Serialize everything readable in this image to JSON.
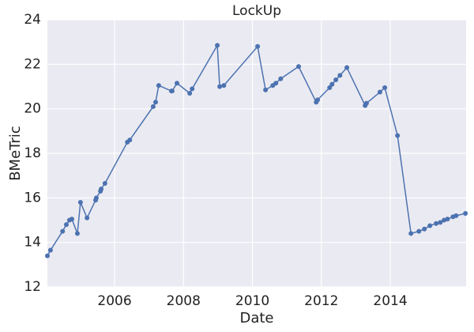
{
  "chart_data": {
    "type": "line",
    "title": "LockUp",
    "x_label": "Date",
    "y_label": "BMeTric",
    "x": [
      2004.05,
      2004.14,
      2004.49,
      2004.6,
      2004.69,
      2004.76,
      2004.92,
      2005.01,
      2005.2,
      2005.45,
      2005.47,
      2005.59,
      2005.61,
      2005.72,
      2006.37,
      2006.44,
      2007.12,
      2007.19,
      2007.28,
      2007.65,
      2007.67,
      2007.81,
      2008.18,
      2008.25,
      2008.98,
      2009.05,
      2009.17,
      2010.15,
      2010.38,
      2010.59,
      2010.68,
      2010.82,
      2011.34,
      2011.85,
      2011.89,
      2012.24,
      2012.31,
      2012.42,
      2012.54,
      2012.74,
      2013.27,
      2013.31,
      2013.7,
      2013.84,
      2014.21,
      2014.6,
      2014.83,
      2014.99,
      2015.15,
      2015.33,
      2015.45,
      2015.56,
      2015.66,
      2015.82,
      2015.91,
      2016.18
    ],
    "series": [
      {
        "name": "BMeTric",
        "color": "#4c72b0",
        "values": [
          13.4,
          13.65,
          14.5,
          14.8,
          15.0,
          15.05,
          14.4,
          15.8,
          15.1,
          15.9,
          16.0,
          16.3,
          16.4,
          16.65,
          18.5,
          18.6,
          20.1,
          20.3,
          21.05,
          20.8,
          20.8,
          21.15,
          20.7,
          20.9,
          22.85,
          21.0,
          21.05,
          22.8,
          20.85,
          21.05,
          21.15,
          21.35,
          21.9,
          20.3,
          20.4,
          20.95,
          21.1,
          21.3,
          21.5,
          21.85,
          20.15,
          20.25,
          20.75,
          20.95,
          18.8,
          14.4,
          14.5,
          14.6,
          14.75,
          14.85,
          14.9,
          15.0,
          15.05,
          15.15,
          15.2,
          15.3
        ]
      }
    ],
    "xlim": [
      2004.05,
      2016.2
    ],
    "xticks": [
      2006,
      2008,
      2010,
      2012,
      2014
    ],
    "ylim": [
      12,
      24
    ],
    "yticks": [
      12,
      14,
      16,
      18,
      20,
      22,
      24
    ],
    "grid": true
  }
}
